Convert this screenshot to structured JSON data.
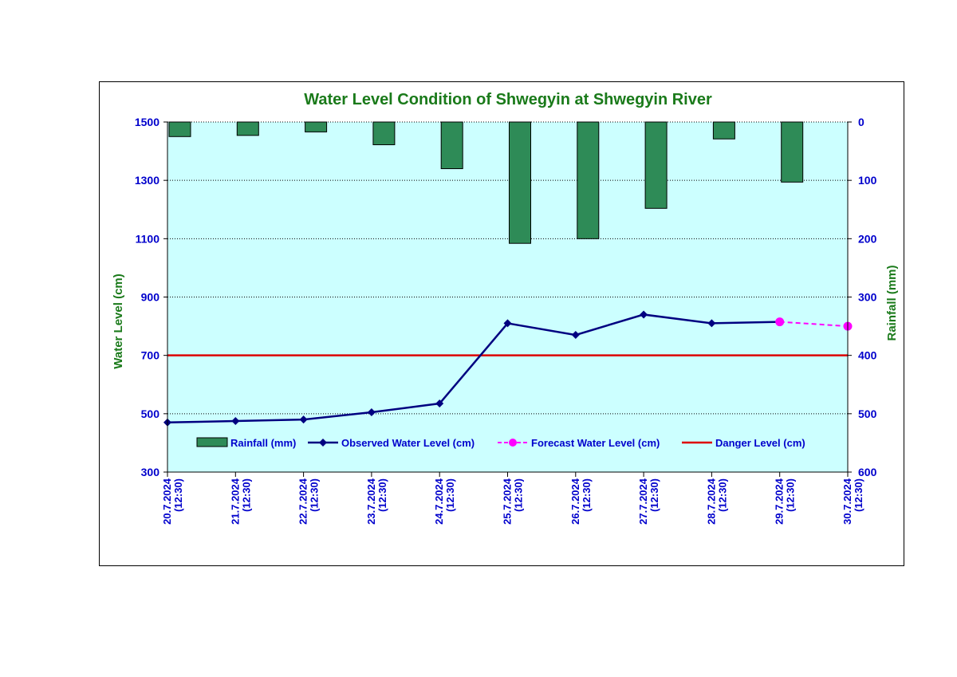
{
  "chart_data": {
    "type": "bar+line",
    "title": "Water Level Condition of Shwegyin at Shwegyin River",
    "ylabel_left": "Water Level (cm)",
    "ylabel_right": "Rainfall (mm)",
    "ylim_left": [
      300,
      1500
    ],
    "yticks_left": [
      300,
      500,
      700,
      900,
      1100,
      1300,
      1500
    ],
    "ylim_right": [
      0,
      600
    ],
    "right_axis_inverted": true,
    "yticks_right": [
      0,
      100,
      200,
      300,
      400,
      500,
      600
    ],
    "categories": [
      [
        "20.7.2024",
        "(12:30)"
      ],
      [
        "21.7.2024",
        "(12:30)"
      ],
      [
        "22.7.2024",
        "(12:30)"
      ],
      [
        "23.7.2024",
        "(12:30)"
      ],
      [
        "24.7.2024",
        "(12:30)"
      ],
      [
        "25.7.2024",
        "(12:30)"
      ],
      [
        "26.7.2024",
        "(12:30)"
      ],
      [
        "27.7.2024",
        "(12:30)"
      ],
      [
        "28.7.2024",
        "(12:30)"
      ],
      [
        "29.7.2024",
        "(12:30)"
      ],
      [
        "30.7.2024",
        "(12:30)"
      ]
    ],
    "legend": "bottom-inside",
    "grid": "horizontal dotted",
    "series": [
      {
        "name": "Rainfall (mm)",
        "kind": "bar",
        "axis": "right",
        "color": "#2e8b57",
        "values": [
          25,
          23,
          17,
          39,
          80,
          208,
          200,
          148,
          29,
          103,
          null
        ]
      },
      {
        "name": "Observed Water Level (cm)",
        "kind": "line",
        "axis": "left",
        "color": "#000080",
        "values": [
          470,
          475,
          480,
          505,
          535,
          810,
          770,
          840,
          810,
          815,
          null
        ]
      },
      {
        "name": "Forecast Water Level (cm)",
        "kind": "dashed-line",
        "axis": "left",
        "color": "#ff00ff",
        "values": [
          null,
          null,
          null,
          null,
          null,
          null,
          null,
          null,
          null,
          815,
          800
        ]
      },
      {
        "name": "Danger Level (cm)",
        "kind": "constant-line",
        "axis": "left",
        "color": "#dd0000",
        "value": 700
      }
    ],
    "plot_background": "#ccffff"
  }
}
